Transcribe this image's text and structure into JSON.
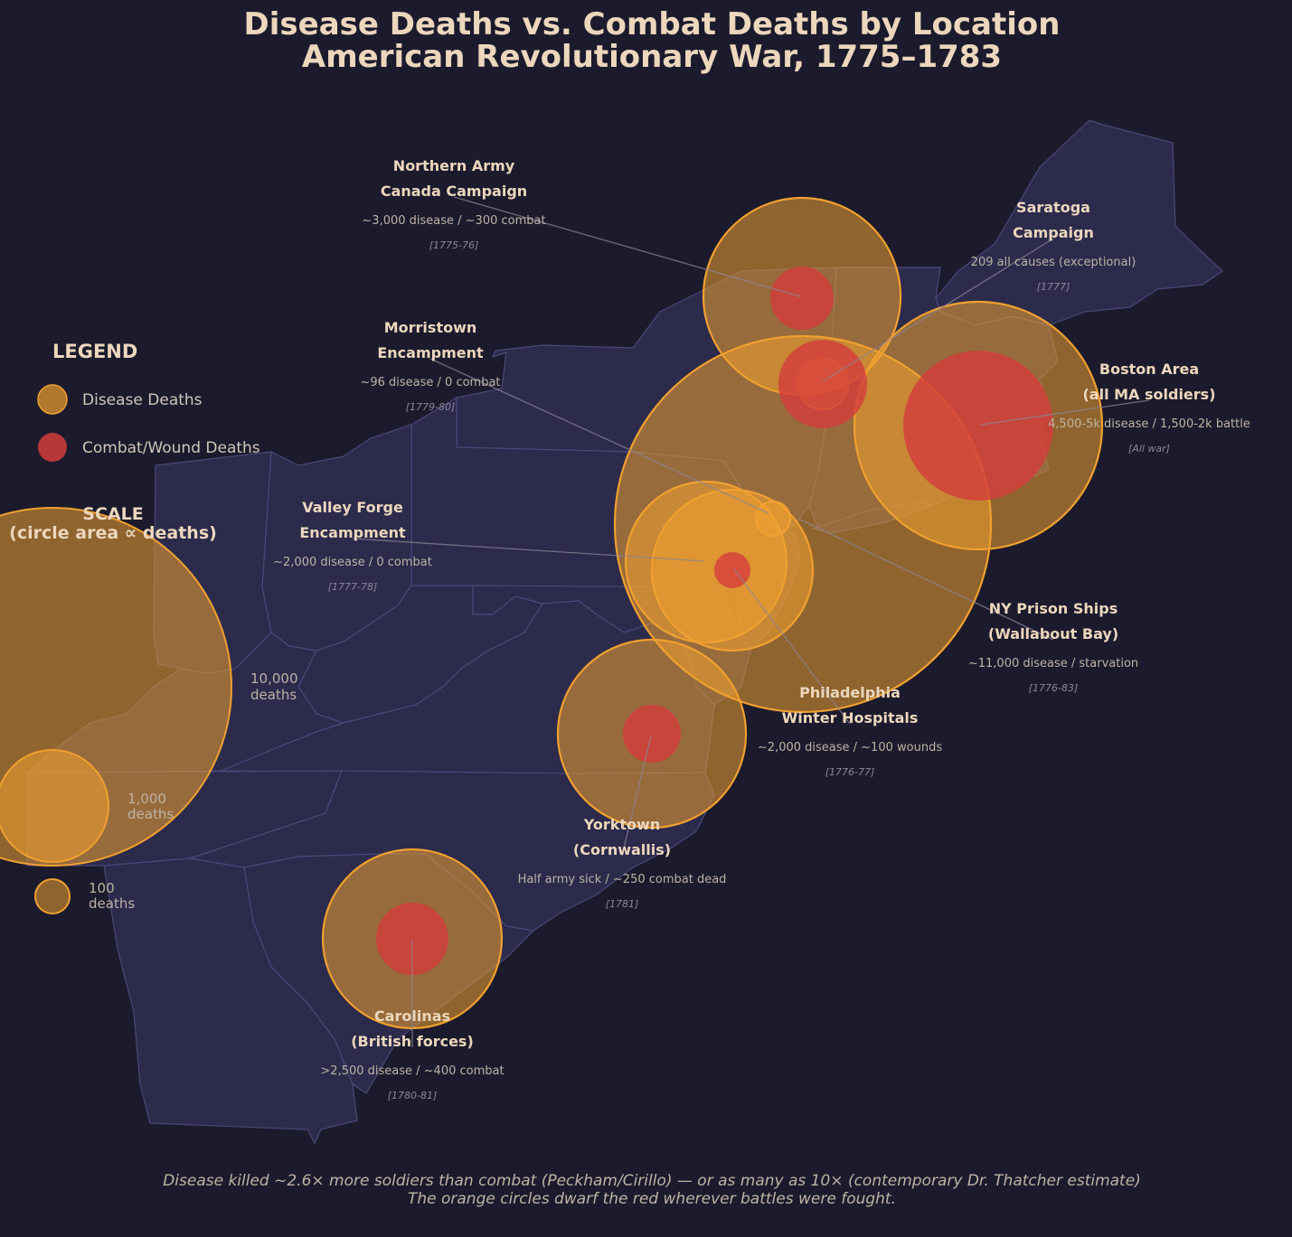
{
  "title": {
    "line1": "Disease Deaths vs. Combat Deaths by Location",
    "line2": "American Revolutionary War, 1775–1783"
  },
  "colors": {
    "background": "#1c1b2d",
    "land": "#2c2b4c",
    "disease": "#f0a030",
    "combat": "#d43c3c"
  },
  "legend": {
    "title": "LEGEND",
    "disease_label": "Disease Deaths",
    "combat_label": "Combat/Wound Deaths"
  },
  "scale": {
    "title_line1": "SCALE",
    "title_line2": "(circle area ∝ deaths)",
    "items": [
      {
        "value": 10000,
        "label1": "10,000",
        "label2": "deaths"
      },
      {
        "value": 1000,
        "label1": "1,000",
        "label2": "deaths"
      },
      {
        "value": 100,
        "label1": "100",
        "label2": "deaths"
      }
    ]
  },
  "locations": [
    {
      "id": "northern-army",
      "name": "Northern Army",
      "sub": "Canada Campaign",
      "stat": "~3,000 disease / ~300 combat",
      "date": "[1775-76]",
      "disease": 3000,
      "combat": 300
    },
    {
      "id": "saratoga",
      "name": "Saratoga",
      "sub": "Campaign",
      "stat": "209 all causes (exceptional)",
      "date": "[1777]",
      "disease": 209,
      "combat": 0
    },
    {
      "id": "morristown",
      "name": "Morristown",
      "sub": "Encampment",
      "stat": "~96 disease / 0 combat",
      "date": "[1779-80]",
      "disease": 96,
      "combat": 0
    },
    {
      "id": "boston",
      "name": "Boston Area",
      "sub": "(all MA soldiers)",
      "stat": "4,500-5k disease / 1,500-2k battle",
      "date": "[All war]",
      "disease": 4750,
      "combat": 1750
    },
    {
      "id": "valley-forge",
      "name": "Valley Forge",
      "sub": "Encampment",
      "stat": "~2,000 disease / 0 combat",
      "date": "[1777-78]",
      "disease": 2000,
      "combat": 0
    },
    {
      "id": "ny-prison-ships",
      "name": "NY Prison Ships",
      "sub": "(Wallabout Bay)",
      "stat": "~11,000 disease / starvation",
      "date": "[1776-83]",
      "disease": 11000,
      "combat": 0
    },
    {
      "id": "philadelphia",
      "name": "Philadelphia",
      "sub": "Winter Hospitals",
      "stat": "~2,000 disease / ~100 wounds",
      "date": "[1776-77]",
      "disease": 2000,
      "combat": 100
    },
    {
      "id": "yorktown",
      "name": "Yorktown",
      "sub": "(Cornwallis)",
      "stat": "Half army sick / ~250 combat dead",
      "date": "[1781]",
      "disease": 2500,
      "combat": 250
    },
    {
      "id": "carolinas",
      "name": "Carolinas",
      "sub": "(British forces)",
      "stat": ">2,500 disease / ~400 combat",
      "date": "[1780-81]",
      "disease": 2500,
      "combat": 400
    }
  ],
  "footnote": {
    "line1": "Disease killed ~2.6× more soldiers than combat (Peckham/Cirillo) — or as many as 10× (contemporary Dr. Thatcher estimate)",
    "line2": "The orange circles dwarf the red wherever battles were fought."
  }
}
